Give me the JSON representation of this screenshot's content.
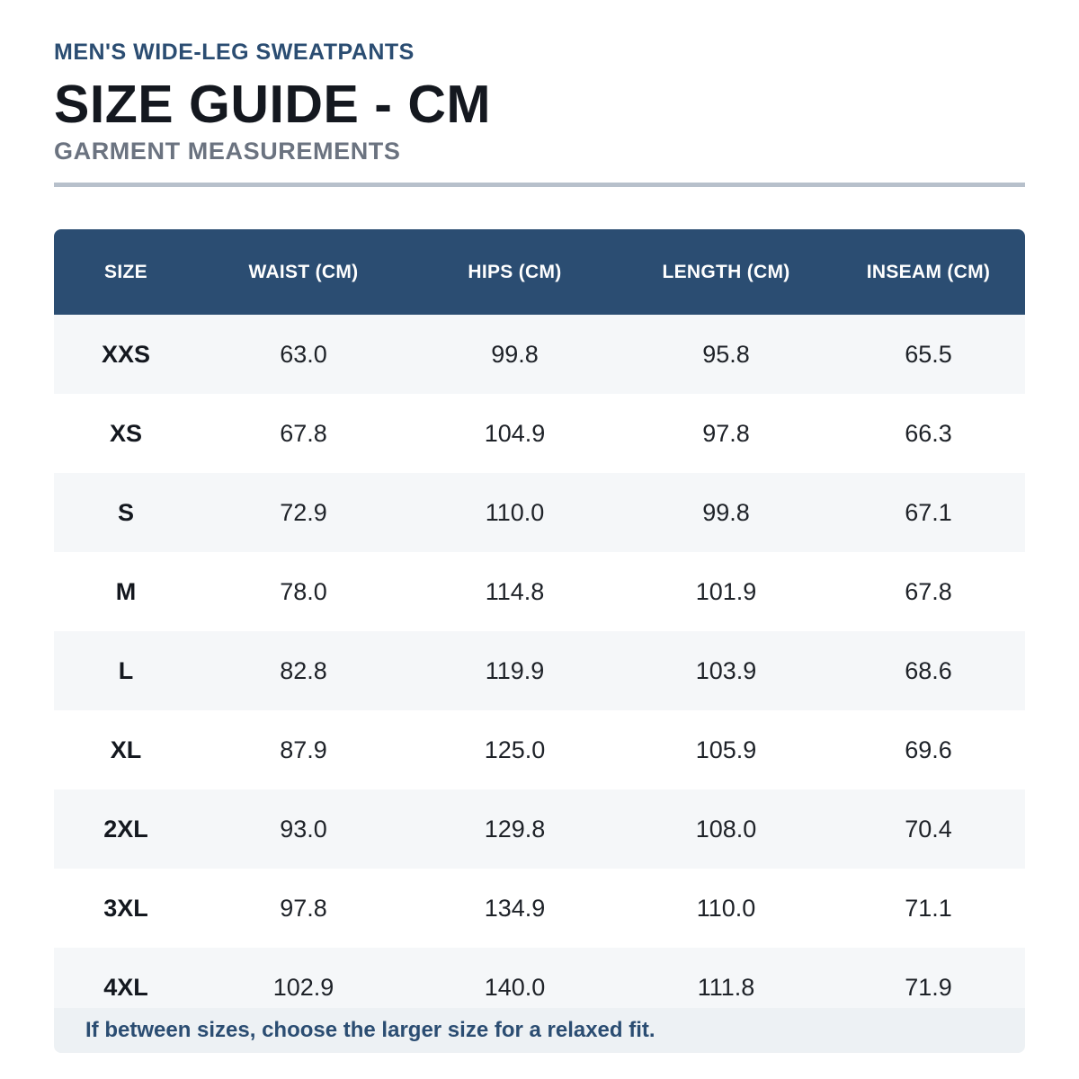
{
  "header": {
    "eyebrow": "MEN'S WIDE-LEG SWEATPANTS",
    "title": "SIZE GUIDE - CM",
    "subtitle": "GARMENT MEASUREMENTS"
  },
  "table": {
    "columns": [
      "SIZE",
      "WAIST (CM)",
      "HIPS (CM)",
      "LENGTH (CM)",
      "INSEAM (CM)"
    ],
    "rows": [
      [
        "XXS",
        "63.0",
        "99.8",
        "95.8",
        "65.5"
      ],
      [
        "XS",
        "67.8",
        "104.9",
        "97.8",
        "66.3"
      ],
      [
        "S",
        "72.9",
        "110.0",
        "99.8",
        "67.1"
      ],
      [
        "M",
        "78.0",
        "114.8",
        "101.9",
        "67.8"
      ],
      [
        "L",
        "82.8",
        "119.9",
        "103.9",
        "68.6"
      ],
      [
        "XL",
        "87.9",
        "125.0",
        "105.9",
        "69.6"
      ],
      [
        "2XL",
        "93.0",
        "129.8",
        "108.0",
        "70.4"
      ],
      [
        "3XL",
        "97.8",
        "134.9",
        "110.0",
        "71.1"
      ],
      [
        "4XL",
        "102.9",
        "140.0",
        "111.8",
        "71.9"
      ]
    ]
  },
  "note": "If between sizes, choose the larger size for a relaxed fit.",
  "colors": {
    "header_bg": "#2b4d72",
    "accent_text": "#2b4d72",
    "row_alt": "#f5f7f9",
    "divider": "#b7c0cb"
  }
}
